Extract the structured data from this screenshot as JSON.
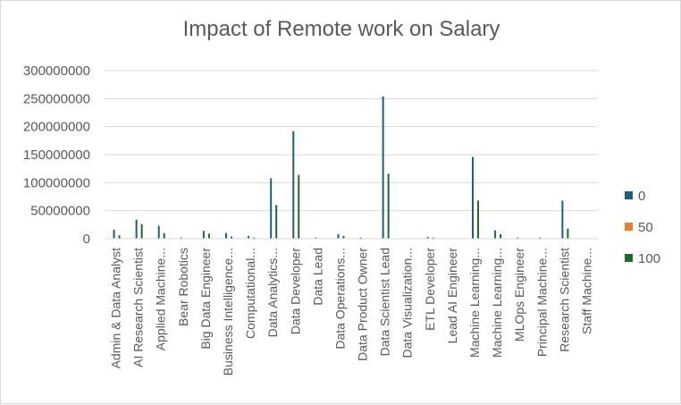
{
  "chart_data": {
    "type": "bar",
    "title": "Impact of Remote work on Salary",
    "xlabel": "",
    "ylabel": "",
    "ylim": [
      0,
      300000000
    ],
    "yticks": [
      "0",
      "50000000",
      "100000000",
      "150000000",
      "200000000",
      "250000000",
      "300000000"
    ],
    "grid": true,
    "legend_position": "right",
    "categories": [
      "Admin & Data Analyst",
      "AI Research Scientist",
      "Applied Machine...",
      "Bear Robotics",
      "Big Data Engineer",
      "Business Intelligence...",
      "Computational...",
      "Data Analytics...",
      "Data Developer",
      "Data Lead",
      "Data Operations...",
      "Data Product Owner",
      "Data Scientist Lead",
      "Data Visualization...",
      "ETL Developer",
      "Lead AI Engineer",
      "Machine Learning...",
      "Machine Learning...",
      "MLOps Engineer",
      "Principal Machine...",
      "Research Scientist",
      "Staff Machine..."
    ],
    "series": [
      {
        "name": "0",
        "color": "#1f5f7a",
        "values": [
          16000000,
          34000000,
          23000000,
          2000000,
          14000000,
          10000000,
          5000000,
          108000000,
          192000000,
          2000000,
          8000000,
          2000000,
          254000000,
          1000000,
          3000000,
          1000000,
          146000000,
          15000000,
          2000000,
          2000000,
          68000000,
          1000000
        ]
      },
      {
        "name": "50",
        "color": "#ed7d31",
        "values": [
          500000,
          500000,
          500000,
          0,
          500000,
          500000,
          0,
          500000,
          1000000,
          0,
          500000,
          0,
          1000000,
          0,
          0,
          0,
          1000000,
          500000,
          0,
          0,
          1000000,
          0
        ]
      },
      {
        "name": "100",
        "color": "#1e6b2e",
        "values": [
          6000000,
          26000000,
          10000000,
          1000000,
          9000000,
          4000000,
          2000000,
          60000000,
          114000000,
          1000000,
          5000000,
          1000000,
          116000000,
          500000,
          2000000,
          500000,
          68000000,
          8000000,
          1000000,
          1000000,
          18000000,
          500000
        ]
      }
    ]
  }
}
